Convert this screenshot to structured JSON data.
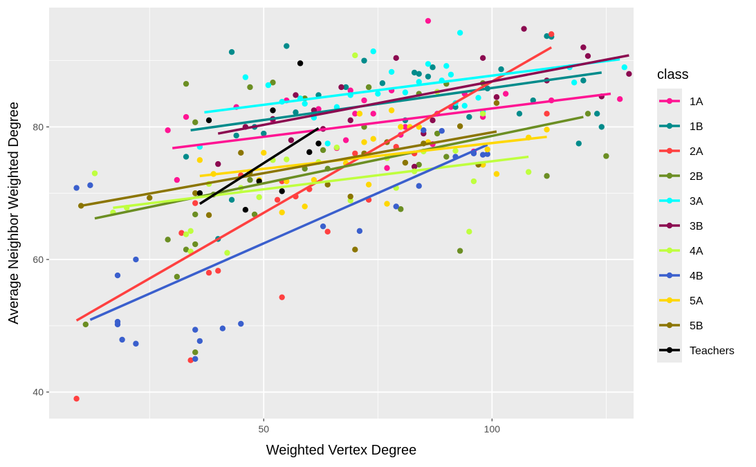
{
  "chart_data": {
    "type": "scatter",
    "xlabel": "Weighted Vertex Degree",
    "ylabel": "Average Neighbor Weighted Degree",
    "xlim": [
      3,
      131
    ],
    "ylim": [
      36,
      98
    ],
    "x_ticks": [
      50,
      100
    ],
    "x_minor_ticks": [
      25,
      75,
      125
    ],
    "y_ticks": [
      40,
      60,
      80
    ],
    "y_minor_ticks": [
      50,
      70,
      90
    ],
    "grid": true,
    "legend": {
      "title": "class",
      "position": "right"
    },
    "series": [
      {
        "name": "1A",
        "color": "#ff1493",
        "points": [
          [
            29,
            79.5
          ],
          [
            31,
            72
          ],
          [
            33,
            81.5
          ],
          [
            44,
            83
          ],
          [
            52,
            81
          ],
          [
            55,
            84
          ],
          [
            62,
            82.7
          ],
          [
            66,
            76.8
          ],
          [
            68,
            78
          ],
          [
            69,
            85.5
          ],
          [
            70,
            82
          ],
          [
            72,
            84
          ],
          [
            74,
            82
          ],
          [
            77,
            73.8
          ],
          [
            78,
            85.5
          ],
          [
            80,
            78.8
          ],
          [
            81,
            80
          ],
          [
            86,
            96
          ],
          [
            87,
            77.4
          ],
          [
            88,
            82
          ],
          [
            91,
            83
          ],
          [
            94,
            85
          ],
          [
            96,
            76.3
          ],
          [
            98,
            81.5
          ],
          [
            103,
            85
          ],
          [
            113,
            84
          ],
          [
            128,
            84.2
          ]
        ],
        "fit": [
          [
            30,
            76.8
          ],
          [
            126,
            85
          ]
        ]
      },
      {
        "name": "1B",
        "color": "#008b8b",
        "points": [
          [
            33,
            75.5
          ],
          [
            43,
            91.3
          ],
          [
            44,
            78.7
          ],
          [
            48,
            80
          ],
          [
            50,
            79
          ],
          [
            55,
            92.2
          ],
          [
            57,
            82.2
          ],
          [
            62,
            84.8
          ],
          [
            68,
            86
          ],
          [
            72,
            90
          ],
          [
            76,
            86.6
          ],
          [
            81,
            81
          ],
          [
            83,
            88.2
          ],
          [
            84,
            88
          ],
          [
            86,
            87.6
          ],
          [
            87,
            89
          ],
          [
            92,
            83
          ],
          [
            95,
            81.5
          ],
          [
            99,
            85.8
          ],
          [
            102,
            88.7
          ],
          [
            106,
            82
          ],
          [
            109,
            84
          ],
          [
            112,
            93.7
          ],
          [
            113,
            93.6
          ],
          [
            119,
            77.5
          ],
          [
            120,
            87
          ],
          [
            123,
            82
          ],
          [
            124,
            80
          ],
          [
            40,
            63.1
          ],
          [
            43,
            69
          ]
        ],
        "fit": [
          [
            34,
            79.5
          ],
          [
            124,
            88.2
          ]
        ]
      },
      {
        "name": "2A",
        "color": "#ff4040",
        "points": [
          [
            9,
            39
          ],
          [
            32,
            64
          ],
          [
            34,
            44.8
          ],
          [
            35,
            68.5
          ],
          [
            38,
            58
          ],
          [
            40,
            58.3
          ],
          [
            45,
            72.7
          ],
          [
            53,
            69
          ],
          [
            54,
            54.3
          ],
          [
            57,
            69.5
          ],
          [
            60,
            70.6
          ],
          [
            64,
            64.2
          ],
          [
            70,
            76
          ],
          [
            73,
            69
          ],
          [
            79,
            77
          ],
          [
            83,
            76
          ],
          [
            101,
            84.5
          ],
          [
            113,
            94
          ],
          [
            54,
            71.8
          ],
          [
            112,
            82
          ]
        ],
        "fit": [
          [
            9,
            50.8
          ],
          [
            113,
            92
          ]
        ]
      },
      {
        "name": "2B",
        "color": "#6b8e23",
        "points": [
          [
            11,
            50.2
          ],
          [
            29,
            63
          ],
          [
            31,
            57.4
          ],
          [
            33,
            61.5
          ],
          [
            33,
            86.5
          ],
          [
            35,
            46
          ],
          [
            35,
            62.3
          ],
          [
            35,
            66.8
          ],
          [
            35,
            80.7
          ],
          [
            39,
            69.8
          ],
          [
            47,
            72
          ],
          [
            47,
            86
          ],
          [
            48,
            66.8
          ],
          [
            52,
            86.7
          ],
          [
            59,
            73.7
          ],
          [
            59,
            84.3
          ],
          [
            63,
            76.5
          ],
          [
            64,
            73.7
          ],
          [
            72,
            80
          ],
          [
            73,
            86
          ],
          [
            80,
            67.6
          ],
          [
            81,
            74.6
          ],
          [
            84,
            74.3
          ],
          [
            84,
            85
          ],
          [
            90,
            75.5
          ],
          [
            90,
            86.5
          ],
          [
            93,
            61.3
          ],
          [
            98,
            74.3
          ],
          [
            98,
            86.6
          ],
          [
            112,
            72.6
          ],
          [
            121,
            82
          ],
          [
            125,
            75.6
          ],
          [
            88,
            79
          ]
        ],
        "fit": [
          [
            13,
            66.2
          ],
          [
            120,
            81.5
          ]
        ]
      },
      {
        "name": "3A",
        "color": "#00ffff",
        "points": [
          [
            36,
            77
          ],
          [
            46,
            87.5
          ],
          [
            51,
            86.3
          ],
          [
            54,
            83.8
          ],
          [
            58,
            84.3
          ],
          [
            59,
            83.5
          ],
          [
            61,
            81.4
          ],
          [
            64,
            77.5
          ],
          [
            66,
            83
          ],
          [
            69,
            84.8
          ],
          [
            74,
            91.4
          ],
          [
            75,
            85
          ],
          [
            78,
            88.3
          ],
          [
            81,
            85.2
          ],
          [
            84,
            86.8
          ],
          [
            86,
            89.5
          ],
          [
            89,
            87
          ],
          [
            90,
            89.2
          ],
          [
            91,
            87.9
          ],
          [
            92,
            83.6
          ],
          [
            93,
            94.2
          ],
          [
            94,
            83.2
          ],
          [
            97,
            84.4
          ],
          [
            98,
            82.3
          ],
          [
            117,
            89
          ],
          [
            118,
            86.7
          ],
          [
            129,
            89
          ]
        ],
        "fit": [
          [
            37,
            82.2
          ],
          [
            128,
            90.2
          ]
        ]
      },
      {
        "name": "3B",
        "color": "#8b0a50",
        "points": [
          [
            40,
            74.4
          ],
          [
            46,
            80
          ],
          [
            52,
            81.2
          ],
          [
            56,
            78
          ],
          [
            57,
            84.8
          ],
          [
            63,
            79.7
          ],
          [
            67,
            86
          ],
          [
            69,
            81
          ],
          [
            79,
            90.4
          ],
          [
            83,
            74
          ],
          [
            85,
            79
          ],
          [
            87,
            81
          ],
          [
            98,
            90.4
          ],
          [
            101,
            84.5
          ],
          [
            107,
            94.8
          ],
          [
            112,
            87
          ],
          [
            120,
            92
          ],
          [
            121,
            90.7
          ],
          [
            124,
            84.6
          ],
          [
            130,
            88
          ],
          [
            61,
            82.5
          ]
        ],
        "fit": [
          [
            40,
            79
          ],
          [
            130,
            90.8
          ]
        ]
      },
      {
        "name": "4A",
        "color": "#bfff3f",
        "points": [
          [
            13,
            73
          ],
          [
            17,
            67.1
          ],
          [
            20,
            67.8
          ],
          [
            33,
            63.8
          ],
          [
            34,
            61.2
          ],
          [
            34,
            64.3
          ],
          [
            38,
            71.4
          ],
          [
            42,
            61
          ],
          [
            45,
            70.8
          ],
          [
            49,
            69.4
          ],
          [
            52,
            75
          ],
          [
            55,
            75.1
          ],
          [
            62,
            74.7
          ],
          [
            66,
            76.9
          ],
          [
            69,
            68.9
          ],
          [
            70,
            90.8
          ],
          [
            71,
            82
          ],
          [
            77,
            75.3
          ],
          [
            79,
            70.8
          ],
          [
            83,
            73.3
          ],
          [
            85,
            76.3
          ],
          [
            88,
            85.3
          ],
          [
            92,
            76.4
          ],
          [
            95,
            64.2
          ],
          [
            96,
            71.8
          ],
          [
            98,
            82
          ],
          [
            108,
            73.2
          ]
        ],
        "fit": [
          [
            17,
            67.8
          ],
          [
            108,
            75.5
          ]
        ]
      },
      {
        "name": "4B",
        "color": "#3a5fcd",
        "points": [
          [
            9,
            70.8
          ],
          [
            12,
            71.2
          ],
          [
            18,
            50.2
          ],
          [
            18,
            50.6
          ],
          [
            18,
            57.6
          ],
          [
            19,
            47.9
          ],
          [
            22,
            47.3
          ],
          [
            22,
            60
          ],
          [
            35,
            49.4
          ],
          [
            35,
            45
          ],
          [
            36,
            47.7
          ],
          [
            41,
            49.6
          ],
          [
            45,
            50.3
          ],
          [
            63,
            65
          ],
          [
            71,
            64.3
          ],
          [
            79,
            68
          ],
          [
            84,
            71.1
          ],
          [
            85,
            79.5
          ],
          [
            89,
            79.4
          ],
          [
            92,
            75.5
          ],
          [
            96,
            76
          ],
          [
            98,
            75.8
          ],
          [
            99,
            75.9
          ]
        ],
        "fit": [
          [
            12,
            50.9
          ],
          [
            99,
            77.3
          ]
        ]
      },
      {
        "name": "5A",
        "color": "#ffd700",
        "points": [
          [
            36,
            75
          ],
          [
            39,
            72.9
          ],
          [
            49,
            72
          ],
          [
            50,
            76.1
          ],
          [
            54,
            67.1
          ],
          [
            55,
            71.8
          ],
          [
            59,
            68
          ],
          [
            61,
            72
          ],
          [
            68,
            74.5
          ],
          [
            71,
            82
          ],
          [
            72,
            77.7
          ],
          [
            73,
            71.3
          ],
          [
            74,
            78.2
          ],
          [
            77,
            68.4
          ],
          [
            78,
            82.5
          ],
          [
            80,
            80
          ],
          [
            82,
            80
          ],
          [
            84,
            80
          ],
          [
            86,
            77.7
          ],
          [
            98,
            74.3
          ],
          [
            99,
            76.6
          ],
          [
            101,
            72.9
          ],
          [
            108,
            78.4
          ],
          [
            112,
            79.6
          ]
        ],
        "fit": [
          [
            36,
            72.6
          ],
          [
            112,
            78.5
          ]
        ]
      },
      {
        "name": "5B",
        "color": "#8b7500",
        "points": [
          [
            10,
            68.1
          ],
          [
            25,
            69.3
          ],
          [
            35,
            70
          ],
          [
            38,
            66.7
          ],
          [
            45,
            76.1
          ],
          [
            47,
            73.2
          ],
          [
            64,
            71.3
          ],
          [
            69,
            69.5
          ],
          [
            70,
            61.5
          ],
          [
            72,
            76
          ],
          [
            77,
            77.7
          ],
          [
            81,
            74.6
          ],
          [
            85,
            77.5
          ],
          [
            93,
            80.1
          ],
          [
            97,
            74.3
          ],
          [
            101,
            83.6
          ]
        ],
        "fit": [
          [
            10,
            68.1
          ],
          [
            101,
            79.3
          ]
        ]
      },
      {
        "name": "Teachers",
        "color": "#000000",
        "points": [
          [
            36,
            70
          ],
          [
            38,
            81
          ],
          [
            46,
            67.5
          ],
          [
            49,
            71.8
          ],
          [
            52,
            82.5
          ],
          [
            54,
            70.3
          ],
          [
            58,
            89.6
          ],
          [
            60,
            76.2
          ],
          [
            62,
            77.5
          ]
        ],
        "fit": [
          [
            36,
            68.4
          ],
          [
            62,
            79.8
          ]
        ]
      }
    ]
  }
}
